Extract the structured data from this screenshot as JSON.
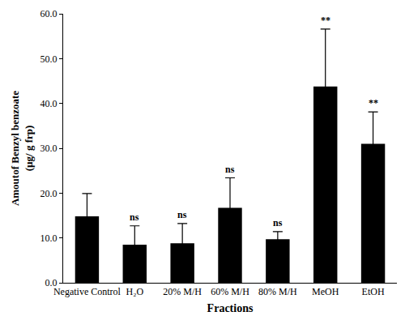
{
  "chart_data": {
    "type": "bar",
    "x_label": "Fractions",
    "y_label": [
      "Amoutof Benzyl benzoate",
      "(µg/ g frp)"
    ],
    "categories": [
      "Negative Control",
      "H₂O",
      "20% M/H",
      "60% M/H",
      "80% M/H",
      "MeOH",
      "EtOH"
    ],
    "values": [
      14.8,
      8.5,
      8.8,
      16.7,
      9.7,
      43.8,
      31.0
    ],
    "errors": [
      5.1,
      4.2,
      4.4,
      6.7,
      1.7,
      12.8,
      7.1
    ],
    "annotations": [
      null,
      "ns",
      "ns",
      "ns",
      "ns",
      "**",
      "**"
    ],
    "color": "#000000",
    "ylim": [
      0,
      60
    ],
    "yticks": [
      {
        "value": 0,
        "label": "0.0"
      },
      {
        "value": 10,
        "label": "10.0"
      },
      {
        "value": 20,
        "label": "20.0"
      },
      {
        "value": 30,
        "label": "30.0"
      },
      {
        "value": 40,
        "label": "40.0"
      },
      {
        "value": 50,
        "label": "50.0"
      },
      {
        "value": 60,
        "label": "60.0"
      }
    ],
    "grid": false
  }
}
